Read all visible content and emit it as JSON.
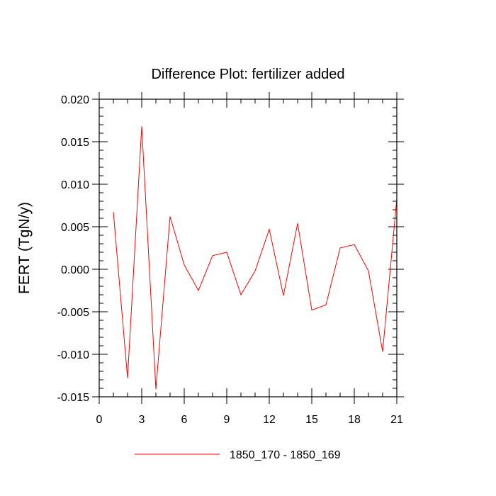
{
  "chart_data": {
    "type": "line",
    "title": "Difference Plot: fertilizer added",
    "xlabel": "",
    "ylabel": "FERT  (TgN/y)",
    "xlim": [
      0,
      21
    ],
    "ylim": [
      -0.015,
      0.02
    ],
    "x_ticks": [
      0,
      3,
      6,
      9,
      12,
      15,
      18,
      21
    ],
    "x_tick_labels": [
      "0",
      "3",
      "6",
      "9",
      "12",
      "15",
      "18",
      "21"
    ],
    "y_ticks": [
      -0.015,
      -0.01,
      -0.005,
      0.0,
      0.005,
      0.01,
      0.015,
      0.02
    ],
    "y_tick_labels": [
      "-0.015",
      "-0.010",
      "-0.005",
      "0.000",
      "0.005",
      "0.010",
      "0.015",
      "0.020"
    ],
    "x_minor_step": 1,
    "y_minor_step": 0.001,
    "grid": false,
    "legend_position": "bottom",
    "series": [
      {
        "name": "1850_170 - 1850_169",
        "color": "#ff0000",
        "x": [
          1,
          2,
          3,
          4,
          5,
          6,
          7,
          8,
          9,
          10,
          11,
          12,
          13,
          14,
          15,
          16,
          17,
          18,
          19,
          20,
          21
        ],
        "y": [
          0.0067,
          -0.0128,
          0.0168,
          -0.0141,
          0.0062,
          0.0005,
          -0.0025,
          0.0016,
          0.002,
          -0.003,
          -0.0002,
          0.0047,
          -0.0031,
          0.0054,
          -0.0048,
          -0.0042,
          0.0025,
          0.0029,
          -0.0002,
          -0.0097,
          0.0083
        ]
      }
    ]
  }
}
